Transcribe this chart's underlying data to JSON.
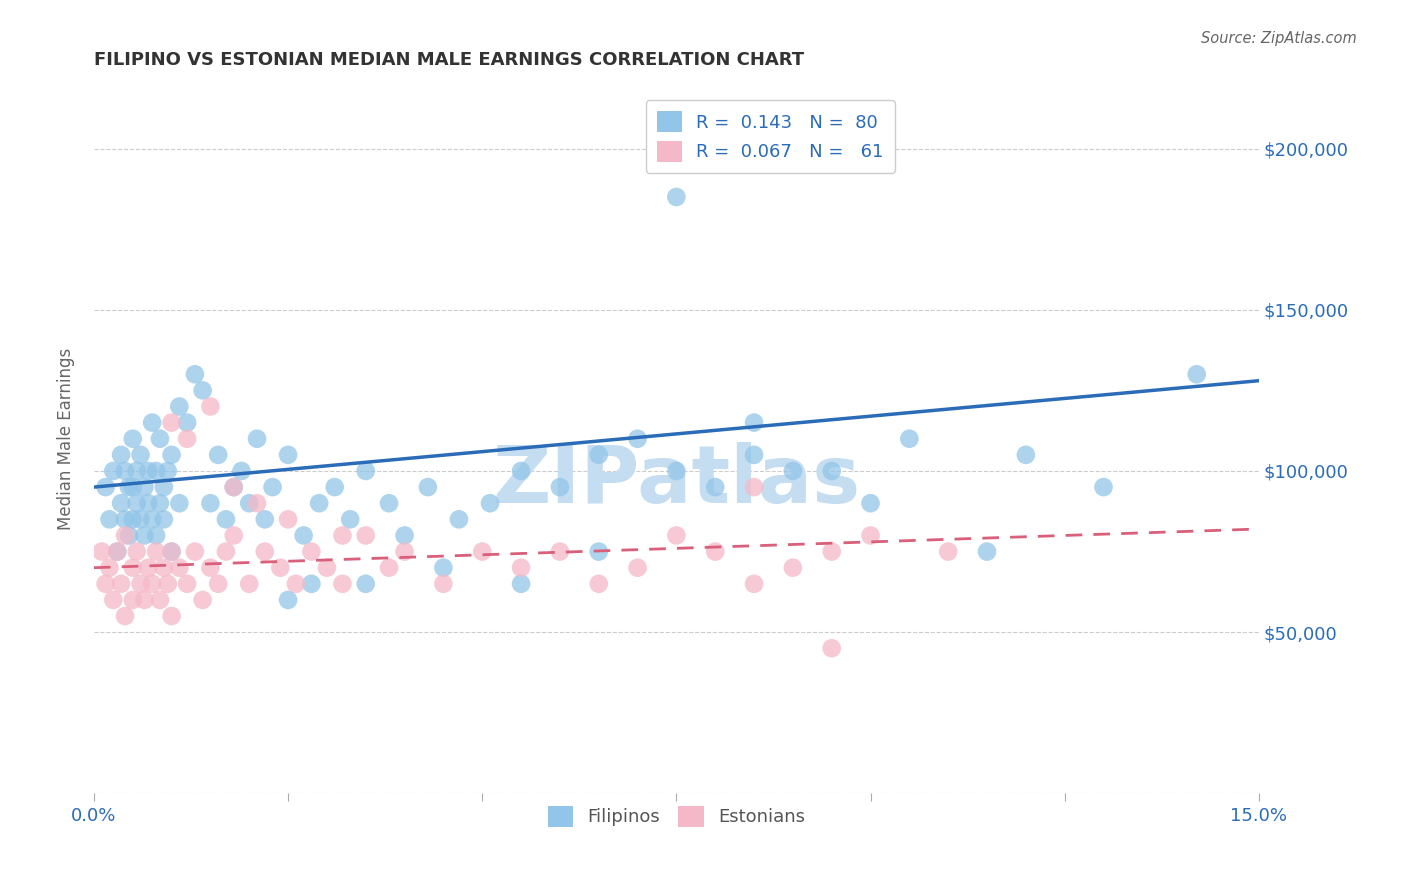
{
  "title": "FILIPINO VS ESTONIAN MEDIAN MALE EARNINGS CORRELATION CHART",
  "source": "Source: ZipAtlas.com",
  "ylabel": "Median Male Earnings",
  "xmin": 0.0,
  "xmax": 15.0,
  "ymin": 0,
  "ymax": 220000,
  "yticks": [
    0,
    50000,
    100000,
    150000,
    200000
  ],
  "xticks": [
    0.0,
    2.5,
    5.0,
    7.5,
    10.0,
    12.5,
    15.0
  ],
  "xtick_labels": [
    "0.0%",
    "",
    "",
    "",
    "",
    "",
    "15.0%"
  ],
  "filipino_R": 0.143,
  "filipino_N": 80,
  "estonian_R": 0.067,
  "estonian_N": 61,
  "filipino_color": "#92c5e8",
  "estonian_color": "#f5b8c8",
  "filipino_line_color": "#2b6cb8",
  "estonian_line_color": "#d95f7a",
  "watermark": "ZIPatlas",
  "watermark_color": "#c5ddf0",
  "filipinos_label": "Filipinos",
  "estonians_label": "Estonians",
  "fil_line_x0": 0.0,
  "fil_line_y0": 95000,
  "fil_line_x1": 15.0,
  "fil_line_y1": 128000,
  "est_line_x0": 0.0,
  "est_line_y0": 70000,
  "est_line_x1": 15.0,
  "est_line_y1": 82000,
  "filipino_x": [
    0.15,
    0.2,
    0.25,
    0.3,
    0.35,
    0.35,
    0.4,
    0.4,
    0.45,
    0.45,
    0.5,
    0.5,
    0.5,
    0.55,
    0.55,
    0.6,
    0.6,
    0.65,
    0.65,
    0.7,
    0.7,
    0.75,
    0.75,
    0.8,
    0.8,
    0.85,
    0.85,
    0.9,
    0.9,
    0.95,
    1.0,
    1.0,
    1.1,
    1.1,
    1.2,
    1.3,
    1.4,
    1.5,
    1.6,
    1.7,
    1.8,
    1.9,
    2.0,
    2.1,
    2.2,
    2.3,
    2.5,
    2.7,
    2.9,
    3.1,
    3.3,
    3.5,
    3.8,
    4.0,
    4.3,
    4.7,
    5.1,
    5.5,
    6.0,
    6.5,
    7.0,
    7.5,
    8.0,
    8.5,
    9.5,
    10.5,
    2.5,
    2.8,
    3.5,
    4.5,
    5.5,
    6.5,
    7.5,
    8.5,
    9.0,
    10.0,
    11.5,
    12.0,
    13.0,
    14.2
  ],
  "filipino_y": [
    95000,
    85000,
    100000,
    75000,
    105000,
    90000,
    85000,
    100000,
    95000,
    80000,
    110000,
    95000,
    85000,
    100000,
    90000,
    85000,
    105000,
    95000,
    80000,
    90000,
    100000,
    85000,
    115000,
    80000,
    100000,
    90000,
    110000,
    95000,
    85000,
    100000,
    75000,
    105000,
    90000,
    120000,
    115000,
    130000,
    125000,
    90000,
    105000,
    85000,
    95000,
    100000,
    90000,
    110000,
    85000,
    95000,
    105000,
    80000,
    90000,
    95000,
    85000,
    100000,
    90000,
    80000,
    95000,
    85000,
    90000,
    100000,
    95000,
    105000,
    110000,
    100000,
    95000,
    105000,
    100000,
    110000,
    60000,
    65000,
    65000,
    70000,
    65000,
    75000,
    185000,
    115000,
    100000,
    90000,
    75000,
    105000,
    95000,
    130000
  ],
  "estonian_x": [
    0.1,
    0.15,
    0.2,
    0.25,
    0.3,
    0.35,
    0.4,
    0.4,
    0.5,
    0.5,
    0.55,
    0.6,
    0.65,
    0.7,
    0.75,
    0.8,
    0.85,
    0.9,
    0.95,
    1.0,
    1.0,
    1.1,
    1.2,
    1.3,
    1.4,
    1.5,
    1.6,
    1.7,
    1.8,
    2.0,
    2.2,
    2.4,
    2.6,
    2.8,
    3.0,
    3.2,
    3.5,
    3.8,
    4.0,
    4.5,
    5.0,
    5.5,
    6.0,
    6.5,
    7.0,
    7.5,
    8.0,
    8.5,
    9.0,
    9.5,
    10.0,
    11.0,
    1.0,
    1.2,
    1.5,
    1.8,
    2.1,
    2.5,
    3.2,
    8.5,
    9.5
  ],
  "estonian_y": [
    75000,
    65000,
    70000,
    60000,
    75000,
    65000,
    80000,
    55000,
    70000,
    60000,
    75000,
    65000,
    60000,
    70000,
    65000,
    75000,
    60000,
    70000,
    65000,
    75000,
    55000,
    70000,
    65000,
    75000,
    60000,
    70000,
    65000,
    75000,
    80000,
    65000,
    75000,
    70000,
    65000,
    75000,
    70000,
    65000,
    80000,
    70000,
    75000,
    65000,
    75000,
    70000,
    75000,
    65000,
    70000,
    80000,
    75000,
    65000,
    70000,
    75000,
    80000,
    75000,
    115000,
    110000,
    120000,
    95000,
    90000,
    85000,
    80000,
    95000,
    45000
  ]
}
